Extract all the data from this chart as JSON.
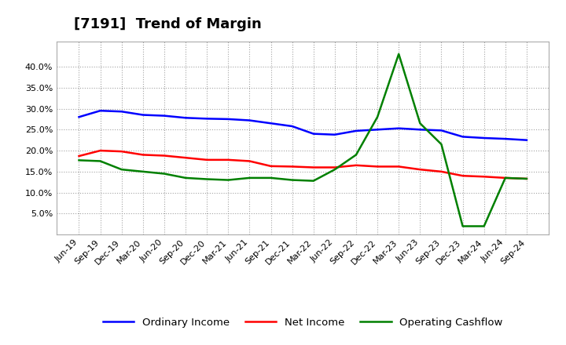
{
  "title": "[7191]  Trend of Margin",
  "x_labels": [
    "Jun-19",
    "Sep-19",
    "Dec-19",
    "Mar-20",
    "Jun-20",
    "Sep-20",
    "Dec-20",
    "Mar-21",
    "Jun-21",
    "Sep-21",
    "Dec-21",
    "Mar-22",
    "Jun-22",
    "Sep-22",
    "Dec-22",
    "Mar-23",
    "Jun-23",
    "Sep-23",
    "Dec-23",
    "Mar-24",
    "Jun-24",
    "Sep-24"
  ],
  "ordinary_income": [
    0.28,
    0.295,
    0.293,
    0.285,
    0.283,
    0.278,
    0.276,
    0.275,
    0.272,
    0.265,
    0.258,
    0.24,
    0.238,
    0.247,
    0.25,
    0.253,
    0.25,
    0.248,
    0.233,
    0.23,
    0.228,
    0.225
  ],
  "net_income": [
    0.187,
    0.2,
    0.198,
    0.19,
    0.188,
    0.183,
    0.178,
    0.178,
    0.175,
    0.163,
    0.162,
    0.16,
    0.16,
    0.165,
    0.162,
    0.162,
    0.155,
    0.15,
    0.14,
    0.138,
    0.135,
    0.133
  ],
  "operating_cashflow": [
    0.177,
    0.175,
    0.155,
    0.15,
    0.145,
    0.135,
    0.132,
    0.13,
    0.135,
    0.135,
    0.13,
    0.128,
    0.155,
    0.19,
    0.28,
    0.43,
    0.265,
    0.215,
    0.02,
    0.02,
    0.135,
    0.133
  ],
  "ylim": [
    0.0,
    0.46
  ],
  "yticks": [
    0.05,
    0.1,
    0.15,
    0.2,
    0.25,
    0.3,
    0.35,
    0.4
  ],
  "line_colors": {
    "ordinary_income": "#0000FF",
    "net_income": "#FF0000",
    "operating_cashflow": "#008000"
  },
  "legend_labels": [
    "Ordinary Income",
    "Net Income",
    "Operating Cashflow"
  ],
  "background_color": "#FFFFFF",
  "grid_color": "#999999",
  "title_fontsize": 13,
  "tick_fontsize": 8
}
